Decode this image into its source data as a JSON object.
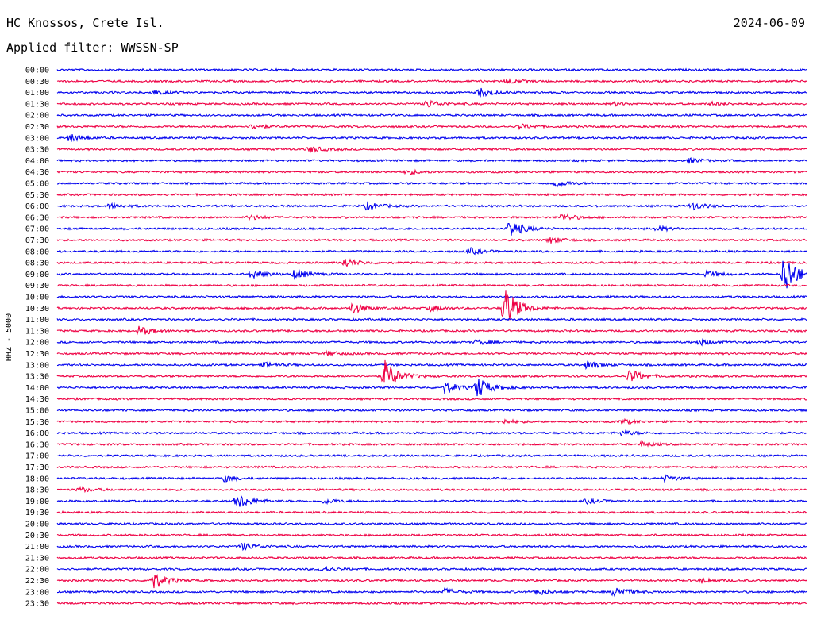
{
  "header": {
    "station": "HC Knossos, Crete Isl.",
    "date": "2024-06-09",
    "filter": "Applied filter: WWSSN-SP"
  },
  "chart_data": {
    "type": "line",
    "ylabel": "HHZ - 5000",
    "row_labels": [
      "00:00",
      "00:30",
      "01:00",
      "01:30",
      "02:00",
      "02:30",
      "03:00",
      "03:30",
      "04:00",
      "04:30",
      "05:00",
      "05:30",
      "06:00",
      "06:30",
      "07:00",
      "07:30",
      "08:00",
      "08:30",
      "09:00",
      "09:30",
      "10:00",
      "10:30",
      "11:00",
      "11:30",
      "12:00",
      "12:30",
      "13:00",
      "13:30",
      "14:00",
      "14:30",
      "15:00",
      "15:30",
      "16:00",
      "16:30",
      "17:00",
      "17:30",
      "18:00",
      "18:30",
      "19:00",
      "19:30",
      "20:00",
      "20:30",
      "21:00",
      "21:30",
      "22:00",
      "22:30",
      "23:00",
      "23:30"
    ],
    "series_colors": [
      "#0000ee",
      "#ee0044"
    ],
    "color_pattern": "alternating by row, starting blue",
    "events": [
      {
        "row": "00:30",
        "minute": 18,
        "amplitude": 3
      },
      {
        "row": "01:00",
        "minute": 3.8,
        "amplitude": 3
      },
      {
        "row": "01:00",
        "minute": 16.9,
        "amplitude": 6
      },
      {
        "row": "01:30",
        "minute": 14.8,
        "amplitude": 5
      },
      {
        "row": "01:30",
        "minute": 22.3,
        "amplitude": 2
      },
      {
        "row": "01:30",
        "minute": 26.2,
        "amplitude": 2
      },
      {
        "row": "02:30",
        "minute": 7.8,
        "amplitude": 3
      },
      {
        "row": "02:30",
        "minute": 18.5,
        "amplitude": 3
      },
      {
        "row": "03:00",
        "minute": 0.5,
        "amplitude": 5
      },
      {
        "row": "03:30",
        "minute": 10.1,
        "amplitude": 4
      },
      {
        "row": "04:00",
        "minute": 25.3,
        "amplitude": 3
      },
      {
        "row": "04:30",
        "minute": 14.0,
        "amplitude": 3
      },
      {
        "row": "05:00",
        "minute": 19.9,
        "amplitude": 5
      },
      {
        "row": "06:00",
        "minute": 2.1,
        "amplitude": 3
      },
      {
        "row": "06:00",
        "minute": 12.4,
        "amplitude": 5
      },
      {
        "row": "06:00",
        "minute": 25.4,
        "amplitude": 5
      },
      {
        "row": "06:30",
        "minute": 7.7,
        "amplitude": 3
      },
      {
        "row": "06:30",
        "minute": 20.2,
        "amplitude": 5
      },
      {
        "row": "07:00",
        "minute": 18.1,
        "amplitude": 12
      },
      {
        "row": "07:00",
        "minute": 24.0,
        "amplitude": 3
      },
      {
        "row": "07:30",
        "minute": 19.7,
        "amplitude": 4
      },
      {
        "row": "08:00",
        "minute": 16.5,
        "amplitude": 4
      },
      {
        "row": "08:30",
        "minute": 11.5,
        "amplitude": 6
      },
      {
        "row": "09:00",
        "minute": 7.8,
        "amplitude": 6
      },
      {
        "row": "09:00",
        "minute": 9.5,
        "amplitude": 6
      },
      {
        "row": "09:00",
        "minute": 26.0,
        "amplitude": 4
      },
      {
        "row": "09:00",
        "minute": 29.1,
        "amplitude": 28
      },
      {
        "row": "10:30",
        "minute": 11.8,
        "amplitude": 7
      },
      {
        "row": "10:30",
        "minute": 14.9,
        "amplitude": 4
      },
      {
        "row": "10:30",
        "minute": 17.9,
        "amplitude": 28
      },
      {
        "row": "11:30",
        "minute": 3.3,
        "amplitude": 6
      },
      {
        "row": "12:00",
        "minute": 16.8,
        "amplitude": 3
      },
      {
        "row": "12:00",
        "minute": 25.7,
        "amplitude": 4
      },
      {
        "row": "12:30",
        "minute": 10.8,
        "amplitude": 3
      },
      {
        "row": "13:00",
        "minute": 8.3,
        "amplitude": 3
      },
      {
        "row": "13:00",
        "minute": 21.2,
        "amplitude": 5
      },
      {
        "row": "13:30",
        "minute": 13.1,
        "amplitude": 20
      },
      {
        "row": "13:30",
        "minute": 22.9,
        "amplitude": 9
      },
      {
        "row": "14:00",
        "minute": 15.5,
        "amplitude": 8
      },
      {
        "row": "14:00",
        "minute": 16.8,
        "amplitude": 14
      },
      {
        "row": "15:30",
        "minute": 17.8,
        "amplitude": 3
      },
      {
        "row": "15:30",
        "minute": 22.6,
        "amplitude": 3
      },
      {
        "row": "16:00",
        "minute": 22.6,
        "amplitude": 3
      },
      {
        "row": "16:30",
        "minute": 23.4,
        "amplitude": 3
      },
      {
        "row": "18:00",
        "minute": 6.7,
        "amplitude": 4
      },
      {
        "row": "18:00",
        "minute": 24.3,
        "amplitude": 4
      },
      {
        "row": "18:30",
        "minute": 0.9,
        "amplitude": 3
      },
      {
        "row": "19:00",
        "minute": 7.2,
        "amplitude": 10
      },
      {
        "row": "19:00",
        "minute": 10.7,
        "amplitude": 3
      },
      {
        "row": "19:00",
        "minute": 21.2,
        "amplitude": 3
      },
      {
        "row": "21:00",
        "minute": 7.4,
        "amplitude": 5
      },
      {
        "row": "22:00",
        "minute": 10.6,
        "amplitude": 4
      },
      {
        "row": "22:30",
        "minute": 3.8,
        "amplitude": 12
      },
      {
        "row": "22:30",
        "minute": 25.8,
        "amplitude": 3
      },
      {
        "row": "23:00",
        "minute": 15.5,
        "amplitude": 4
      },
      {
        "row": "23:00",
        "minute": 19.2,
        "amplitude": 4
      },
      {
        "row": "23:00",
        "minute": 22.3,
        "amplitude": 7
      }
    ]
  }
}
